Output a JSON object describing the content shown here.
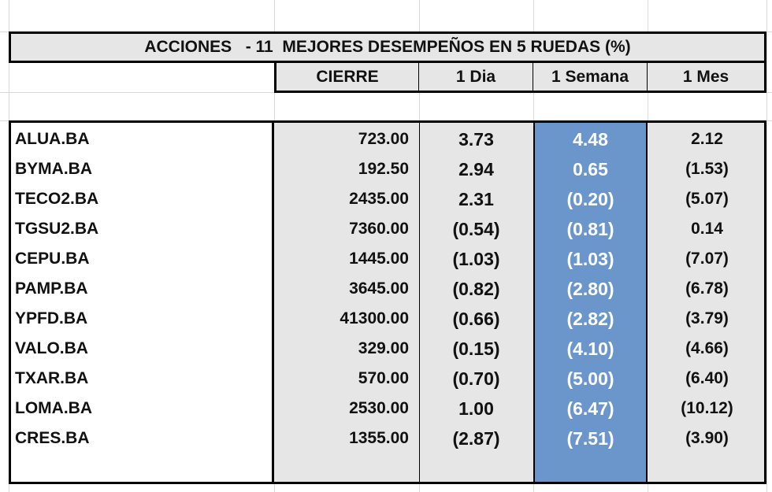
{
  "title": "ACCIONES   - 11  MEJORES DESEMPEÑOS EN 5 RUEDAS (%)",
  "columns": {
    "cierre": "CIERRE",
    "dia": "1 Dia",
    "semana": "1 Semana",
    "mes": "1 Mes"
  },
  "rows": [
    {
      "ticker": "ALUA.BA",
      "cierre": "723.00",
      "dia": "3.73",
      "semana": "4.48",
      "mes": "2.12"
    },
    {
      "ticker": "BYMA.BA",
      "cierre": "192.50",
      "dia": "2.94",
      "semana": "0.65",
      "mes": "(1.53)"
    },
    {
      "ticker": "TECO2.BA",
      "cierre": "2435.00",
      "dia": "2.31",
      "semana": "(0.20)",
      "mes": "(5.07)"
    },
    {
      "ticker": "TGSU2.BA",
      "cierre": "7360.00",
      "dia": "(0.54)",
      "semana": "(0.81)",
      "mes": "0.14"
    },
    {
      "ticker": "CEPU.BA",
      "cierre": "1445.00",
      "dia": "(1.03)",
      "semana": "(1.03)",
      "mes": "(7.07)"
    },
    {
      "ticker": "PAMP.BA",
      "cierre": "3645.00",
      "dia": "(0.82)",
      "semana": "(2.80)",
      "mes": "(6.78)"
    },
    {
      "ticker": "YPFD.BA",
      "cierre": "41300.00",
      "dia": "(0.66)",
      "semana": "(2.82)",
      "mes": "(3.79)"
    },
    {
      "ticker": "VALO.BA",
      "cierre": "329.00",
      "dia": "(0.15)",
      "semana": "(4.10)",
      "mes": "(4.66)"
    },
    {
      "ticker": "TXAR.BA",
      "cierre": "570.00",
      "dia": "(0.70)",
      "semana": "(5.00)",
      "mes": "(6.40)"
    },
    {
      "ticker": "LOMA.BA",
      "cierre": "2530.00",
      "dia": "1.00",
      "semana": "(6.47)",
      "mes": "(10.12)"
    },
    {
      "ticker": "CRES.BA",
      "cierre": "1355.00",
      "dia": "(2.87)",
      "semana": "(7.51)",
      "mes": "(3.90)"
    }
  ],
  "colors": {
    "header_bg": "#e7e6e6",
    "semana_highlight": "#6b96cc",
    "semana_text": "#ffffff"
  }
}
